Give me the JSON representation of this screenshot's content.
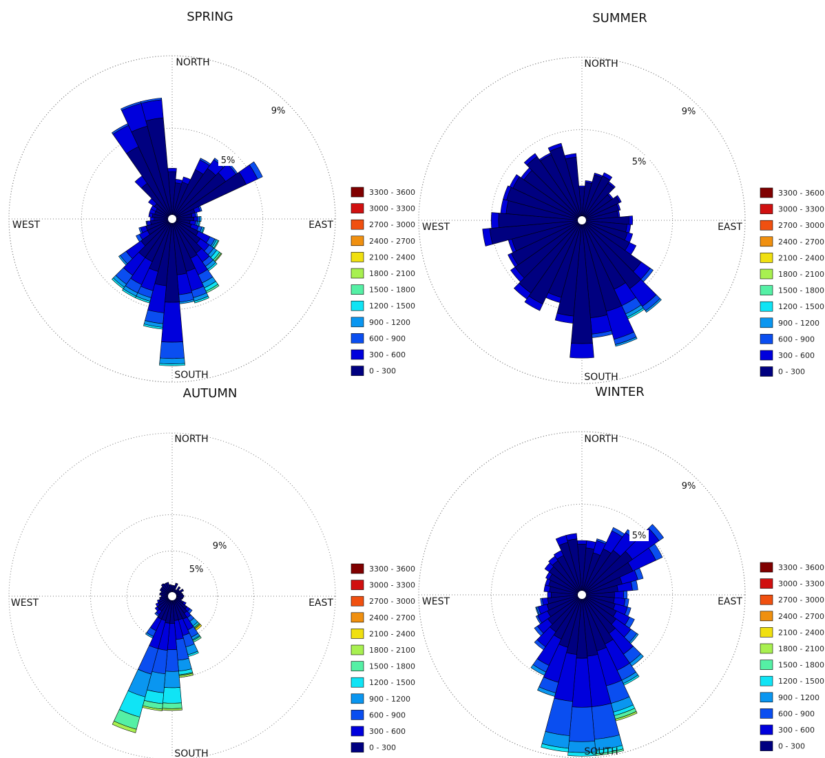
{
  "chart_data": [
    {
      "type": "polar-stacked-bar",
      "title": "SPRING",
      "directions": [
        "NORTH",
        "SOUTH",
        "EAST",
        "WEST"
      ],
      "ring_labels": [
        "5%",
        "9%"
      ],
      "ring_values": [
        5,
        9
      ],
      "rmax": 9,
      "sector_count": 36,
      "legend": [
        "3300 - 3600",
        "3000 - 3300",
        "2700 - 3000",
        "2400 - 2700",
        "2100 - 2400",
        "1800 - 2100",
        "1500 - 1800",
        "1200 - 1500",
        "900 - 1200",
        "600 - 900",
        "300 - 600",
        "0 - 300"
      ],
      "sectors": [
        [
          2.6,
          0.2
        ],
        [
          2.0,
          0.2
        ],
        [
          2.1,
          0.3
        ],
        [
          3.0,
          0.6,
          0.1
        ],
        [
          3.4,
          0.6,
          0.1
        ],
        [
          3.6,
          0.7,
          0.1
        ],
        [
          4.5,
          0.7,
          0.3
        ],
        [
          1.3,
          0.3,
          0.1
        ],
        [
          1.1,
          0.2,
          0.1
        ],
        [
          1.2,
          0.2,
          0.1,
          0.1
        ],
        [
          1.0,
          0.3,
          0.1,
          0.1,
          0.05
        ],
        [
          1.1,
          0.4,
          0.2,
          0.1,
          0.05
        ],
        [
          1.6,
          0.7,
          0.3,
          0.1,
          0.1,
          0.05
        ],
        [
          1.9,
          0.6,
          0.3,
          0.2,
          0.2,
          0.1,
          0.05
        ],
        [
          2.3,
          0.6,
          0.3,
          0.2,
          0.1
        ],
        [
          2.4,
          1.0,
          0.5,
          0.3,
          0.2,
          0.1
        ],
        [
          3.0,
          1.1,
          0.4,
          0.2,
          0.1
        ],
        [
          3.1,
          1.1,
          0.4,
          0.1
        ],
        [
          4.6,
          2.2,
          0.9,
          0.3,
          0.1
        ],
        [
          3.7,
          1.5,
          0.6,
          0.2,
          0.1
        ],
        [
          3.0,
          1.1,
          0.4,
          0.2,
          0.1
        ],
        [
          2.6,
          1.4,
          0.5,
          0.2,
          0.1
        ],
        [
          2.6,
          1.2,
          0.6,
          0.2,
          0.1
        ],
        [
          2.1,
          1.0,
          0.4,
          0.1
        ],
        [
          1.5,
          0.5,
          0.2
        ],
        [
          1.5,
          0.3,
          0.1
        ],
        [
          1.2,
          0.2,
          0.05
        ],
        [
          1.0,
          0.2
        ],
        [
          1.1,
          0.2
        ],
        [
          1.0,
          0.3
        ],
        [
          1.0,
          0.3
        ],
        [
          1.2,
          0.4
        ],
        [
          2.4,
          0.5
        ],
        [
          4.4,
          1.3,
          0.1
        ],
        [
          5.3,
          1.3,
          0.1
        ],
        [
          5.6,
          1.0,
          0.1
        ]
      ]
    },
    {
      "type": "polar-stacked-bar",
      "title": "SUMMER",
      "directions": [
        "NORTH",
        "SOUTH",
        "EAST",
        "WEST"
      ],
      "ring_labels": [
        "5%",
        "9%"
      ],
      "ring_values": [
        5,
        9
      ],
      "rmax": 9,
      "sector_count": 36,
      "legend": [
        "3300 - 3600",
        "3000 - 3300",
        "2700 - 3000",
        "2400 - 2700",
        "2100 - 2400",
        "1800 - 2100",
        "1500 - 1800",
        "1200 - 1500",
        "900 - 1200",
        "600 - 900",
        "300 - 600",
        "0 - 300"
      ],
      "sectors": [
        [
          1.8,
          0.1
        ],
        [
          2.1,
          0.1
        ],
        [
          2.6,
          0.1
        ],
        [
          2.7,
          0.2
        ],
        [
          2.5,
          0.1
        ],
        [
          2.0,
          0.1
        ],
        [
          2.3,
          0.1
        ],
        [
          2.1,
          0.1
        ],
        [
          2.0,
          0.1
        ],
        [
          2.6,
          0.2
        ],
        [
          2.5,
          0.2
        ],
        [
          2.6,
          0.3
        ],
        [
          2.9,
          0.4
        ],
        [
          4.0,
          0.6,
          0.2
        ],
        [
          4.6,
          1.2,
          0.3,
          0.1
        ],
        [
          4.2,
          1.0,
          0.5,
          0.2,
          0.1
        ],
        [
          5.2,
          1.6,
          0.3,
          0.1
        ],
        [
          5.4,
          0.9,
          0.2
        ],
        [
          6.8,
          0.8
        ],
        [
          5.3,
          0.4
        ],
        [
          4.4,
          0.3
        ],
        [
          5.1,
          0.4
        ],
        [
          4.9,
          0.4
        ],
        [
          4.5,
          0.3
        ],
        [
          4.3,
          0.2
        ],
        [
          4.0,
          0.2
        ],
        [
          5.1,
          0.4
        ],
        [
          4.6,
          0.4
        ],
        [
          4.2,
          0.3
        ],
        [
          4.3,
          0.2
        ],
        [
          4.2,
          0.2
        ],
        [
          3.9,
          0.2
        ],
        [
          4.3,
          0.2
        ],
        [
          4.0,
          0.1
        ],
        [
          4.2,
          0.2
        ],
        [
          3.5,
          0.2
        ]
      ]
    },
    {
      "type": "polar-stacked-bar",
      "title": "AUTUMN",
      "directions": [
        "NORTH",
        "SOUTH",
        "EAST",
        "WEST"
      ],
      "ring_labels": [
        "5%",
        "9%"
      ],
      "ring_values": [
        5,
        9
      ],
      "rmax": 18,
      "sector_count": 36,
      "legend": [
        "3300 - 3600",
        "3000 - 3300",
        "2700 - 3000",
        "2400 - 2700",
        "2100 - 2400",
        "1800 - 2100",
        "1500 - 1800",
        "1200 - 1500",
        "900 - 1200",
        "600 - 900",
        "300 - 600",
        "0 - 300"
      ],
      "sectors": [
        [
          1.2
        ],
        [
          1.2
        ],
        [
          1.5
        ],
        [
          0.8
        ],
        [
          1.3
        ],
        [
          1.0
        ],
        [
          1.4
        ],
        [
          1.1
        ],
        [
          1.2
        ],
        [
          1.3
        ],
        [
          1.2
        ],
        [
          1.0,
          0.1
        ],
        [
          1.4,
          0.3
        ],
        [
          2.0,
          0.4,
          0.3
        ],
        [
          2.3,
          0.6,
          0.5,
          0.6,
          0.2,
          0.1,
          0.1,
          0.2
        ],
        [
          2.8,
          1.3,
          0.9,
          0.3,
          0.1,
          0.2
        ],
        [
          2.7,
          1.8,
          1.3,
          0.9,
          0.2
        ],
        [
          2.7,
          2.1,
          2.3,
          1.2,
          0.4,
          0.1,
          0.2
        ],
        [
          3.0,
          2.9,
          2.4,
          1.8,
          1.7,
          0.6,
          0.2
        ],
        [
          3.0,
          3.0,
          2.6,
          2.1,
          1.2,
          0.6,
          0.2
        ],
        [
          2.8,
          3.2,
          2.9,
          2.6,
          2.3,
          1.4,
          0.4
        ],
        [
          2.8,
          1.4,
          0.7,
          0.2
        ],
        [
          2.0,
          0.5,
          0.2
        ],
        [
          2.0,
          0.3
        ],
        [
          1.7,
          0.3
        ],
        [
          1.5,
          0.2
        ],
        [
          1.3,
          0.1
        ],
        [
          1.2
        ],
        [
          1.4
        ],
        [
          1.3
        ],
        [
          1.5
        ],
        [
          1.5
        ],
        [
          1.7
        ],
        [
          1.6
        ],
        [
          1.6
        ],
        [
          1.3
        ]
      ]
    },
    {
      "type": "polar-stacked-bar",
      "title": "WINTER",
      "directions": [
        "NORTH",
        "SOUTH",
        "EAST",
        "WEST"
      ],
      "ring_labels": [
        "5%",
        "9%"
      ],
      "ring_values": [
        5,
        9
      ],
      "rmax": 9,
      "sector_count": 36,
      "legend": [
        "3300 - 3600",
        "3000 - 3300",
        "2700 - 3000",
        "2400 - 2700",
        "2100 - 2400",
        "1800 - 2100",
        "1500 - 1800",
        "1200 - 1500",
        "900 - 1200",
        "600 - 900",
        "300 - 600",
        "0 - 300"
      ],
      "sectors": [
        [
          2.8,
          0.2
        ],
        [
          2.6,
          0.4
        ],
        [
          2.4,
          0.7,
          0.1
        ],
        [
          2.8,
          1.1,
          0.2
        ],
        [
          3.0,
          1.2,
          0.2
        ],
        [
          3.4,
          1.8,
          0.3
        ],
        [
          3.1,
          1.4,
          0.4
        ],
        [
          2.3,
          0.9,
          0.3
        ],
        [
          2.0,
          0.8,
          0.3
        ],
        [
          1.8,
          0.5,
          0.2
        ],
        [
          1.8,
          0.6,
          0.2
        ],
        [
          1.9,
          0.7,
          0.2
        ],
        [
          2.1,
          0.8,
          0.3
        ],
        [
          2.3,
          1.0,
          0.4,
          0.1
        ],
        [
          2.6,
          1.4,
          0.6,
          0.2
        ],
        [
          3.0,
          1.6,
          0.6,
          0.2,
          0.1
        ],
        [
          3.2,
          2.0,
          1.0,
          0.5,
          0.2,
          0.2,
          0.1
        ],
        [
          3.4,
          2.8,
          1.8,
          0.6,
          0.2,
          0.1
        ],
        [
          3.5,
          2.7,
          1.9,
          0.6,
          0.2
        ],
        [
          3.3,
          2.6,
          1.9,
          0.7,
          0.2
        ],
        [
          3.0,
          2.0,
          0.6,
          0.2
        ],
        [
          2.7,
          1.6,
          0.4,
          0.2
        ],
        [
          2.5,
          1.0,
          0.2
        ],
        [
          2.3,
          0.7,
          0.2
        ],
        [
          2.1,
          0.6,
          0.1
        ],
        [
          2.0,
          0.5,
          0.1,
          0.05
        ],
        [
          1.9,
          0.3,
          0.1
        ],
        [
          1.7,
          0.2
        ],
        [
          1.8,
          0.3
        ],
        [
          1.9,
          0.2
        ],
        [
          2.0,
          0.2
        ],
        [
          2.2,
          0.3
        ],
        [
          2.3,
          0.3
        ],
        [
          2.4,
          0.3
        ],
        [
          3.0,
          0.4
        ],
        [
          3.1,
          0.3
        ]
      ]
    }
  ],
  "colors": [
    "#000080",
    "#0000dc",
    "#0a4ef0",
    "#0a96f0",
    "#10e4f5",
    "#55f0a5",
    "#a8f050",
    "#f0e010",
    "#f09010",
    "#f05010",
    "#d01010",
    "#800000"
  ]
}
